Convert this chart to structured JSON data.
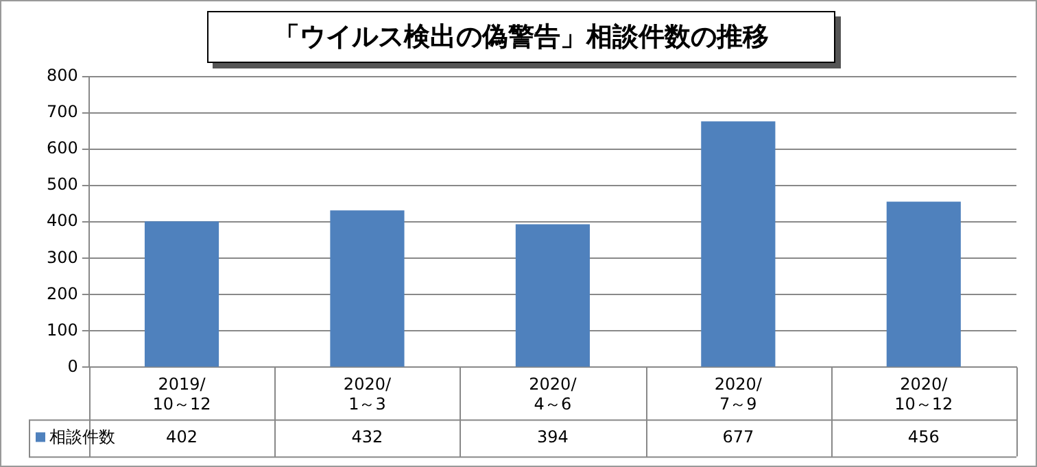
{
  "chart_data": {
    "type": "bar",
    "title": "「ウイルス検出の偽警告」相談件数の推移",
    "categories": [
      "2019/10～12",
      "2020/1～3",
      "2020/4～6",
      "2020/7～9",
      "2020/10～12"
    ],
    "series": [
      {
        "name": "相談件数",
        "color": "#4f81bd",
        "values": [
          402,
          432,
          394,
          677,
          456
        ]
      }
    ],
    "ylim": [
      0,
      800
    ],
    "yticks": [
      0,
      100,
      200,
      300,
      400,
      500,
      600,
      700,
      800
    ],
    "grid": "y",
    "legend": "bottom left",
    "data_labels": true
  }
}
